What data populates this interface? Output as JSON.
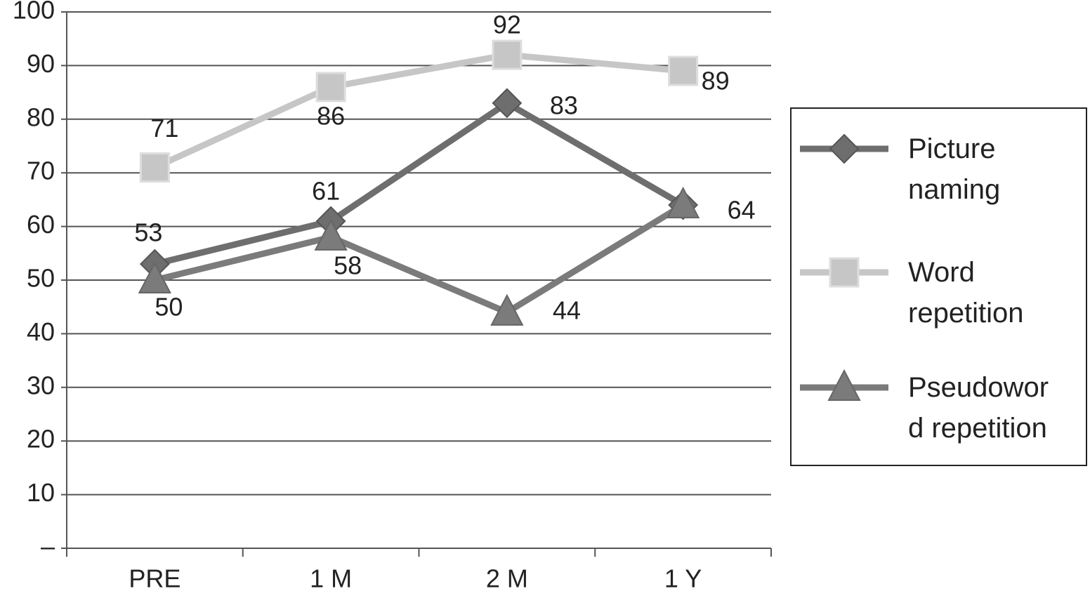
{
  "chart_data": {
    "type": "line",
    "categories": [
      "PRE",
      "1 M",
      "2 M",
      "1 Y"
    ],
    "ylim": [
      0,
      100
    ],
    "yticks": [
      {
        "value": 0,
        "label": "–"
      },
      10,
      20,
      30,
      40,
      50,
      60,
      70,
      80,
      90,
      100
    ],
    "grid": true,
    "legend": "right",
    "series": [
      {
        "name": "Picture naming",
        "color": "#6e6e6e",
        "marker": "diamond",
        "values": [
          53,
          61,
          83,
          64
        ],
        "show_labels": [
          true,
          true,
          true,
          true
        ]
      },
      {
        "name": "Word repetition",
        "color": "#c6c6c6",
        "marker": "square",
        "values": [
          71,
          86,
          92,
          89
        ],
        "show_labels": [
          true,
          true,
          true,
          true
        ]
      },
      {
        "name": "Pseudoword repetition",
        "color": "#7b7b7b",
        "marker": "triangle",
        "values": [
          50,
          58,
          44,
          64
        ],
        "show_labels": [
          true,
          true,
          true,
          false
        ]
      }
    ]
  }
}
